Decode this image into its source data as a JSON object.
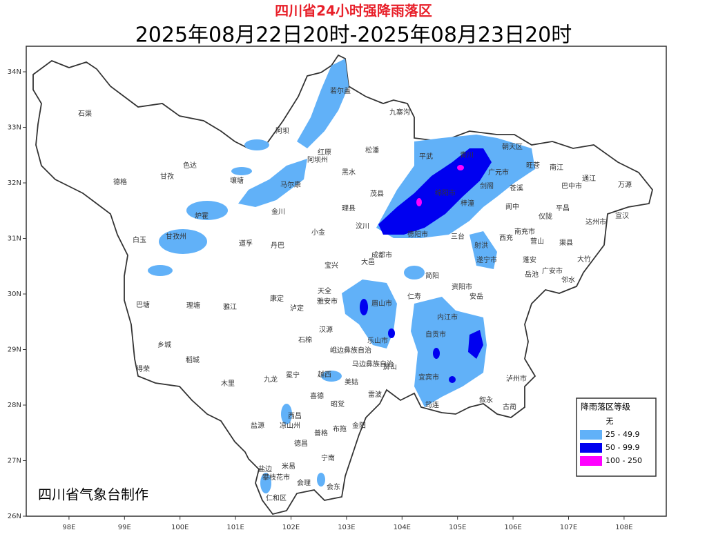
{
  "header": {
    "title": "四川省24小时强降雨落区",
    "subtitle": "2025年08月22日20时-2025年08月23日20时"
  },
  "map": {
    "xlim": [
      97.23,
      108.76
    ],
    "ylim": [
      26,
      34.46
    ],
    "xticks": [
      {
        "value": 98,
        "label": "98E"
      },
      {
        "value": 99,
        "label": "99E"
      },
      {
        "value": 100,
        "label": "100E"
      },
      {
        "value": 101,
        "label": "101E"
      },
      {
        "value": 102,
        "label": "102E"
      },
      {
        "value": 103,
        "label": "103E"
      },
      {
        "value": 104,
        "label": "104E"
      },
      {
        "value": 105,
        "label": "105E"
      },
      {
        "value": 106,
        "label": "106E"
      },
      {
        "value": 107,
        "label": "107E"
      },
      {
        "value": 108,
        "label": "108E"
      }
    ],
    "yticks": [
      {
        "value": 26,
        "label": "26N"
      },
      {
        "value": 27,
        "label": "27N"
      },
      {
        "value": 28,
        "label": "28N"
      },
      {
        "value": 29,
        "label": "29N"
      },
      {
        "value": 30,
        "label": "30N"
      },
      {
        "value": 31,
        "label": "31N"
      },
      {
        "value": 32,
        "label": "32N"
      },
      {
        "value": 33,
        "label": "33N"
      },
      {
        "value": 34,
        "label": "34N"
      }
    ],
    "places": [
      "石渠",
      "德格",
      "甘孜",
      "色达",
      "白玉",
      "甘孜州",
      "炉霍",
      "巴塘",
      "理塘",
      "雅江",
      "乡城",
      "稻城",
      "得荣",
      "道孚",
      "丹巴",
      "康定",
      "泸定",
      "九龙",
      "木里",
      "若尔盖",
      "阿坝",
      "红原",
      "阿坝州",
      "松潘",
      "九寨沟",
      "壤塘",
      "马尔康",
      "黑水",
      "金川",
      "小金",
      "理县",
      "茂县",
      "汶川",
      "平武",
      "青川",
      "朝天区",
      "广元市",
      "旺苍",
      "南江",
      "通江",
      "万源",
      "巴中市",
      "宣汉",
      "达州市",
      "平昌",
      "南充市",
      "苍溪",
      "阆中",
      "剑阁",
      "梓潼",
      "绵阳市",
      "德阳市",
      "成都市",
      "遂宁市",
      "广安市",
      "渠县",
      "大竹",
      "邻水",
      "资阳市",
      "内江市",
      "自贡市",
      "宜宾市",
      "泸州市",
      "叙永",
      "古蔺",
      "乐山市",
      "眉山市",
      "雅安市",
      "天全",
      "宝兴",
      "石棉",
      "汉源",
      "峨边彝族自治",
      "马边彝族自治",
      "屏山",
      "雷波",
      "美姑",
      "越西",
      "冕宁",
      "喜德",
      "昭觉",
      "金阳",
      "布拖",
      "普格",
      "西昌",
      "凉山州",
      "盐源",
      "德昌",
      "宁南",
      "米易",
      "会东",
      "会理",
      "攀枝花市",
      "仁和区",
      "盐边",
      "筠连",
      "安岳",
      "简阳",
      "仁寿",
      "三台",
      "射洪",
      "西充",
      "蓬安",
      "营山",
      "仪陇",
      "岳池",
      "大邑"
    ]
  },
  "legend": {
    "title": "降雨落区等级",
    "items": [
      {
        "label": "无",
        "color": "#ffffff"
      },
      {
        "label": "25 - 49.9",
        "color": "#61b1f8"
      },
      {
        "label": "50 - 99.9",
        "color": "#0000f0"
      },
      {
        "label": "100 - 250",
        "color": "#ff00ff"
      }
    ]
  },
  "credit": "四川省气象台制作"
}
